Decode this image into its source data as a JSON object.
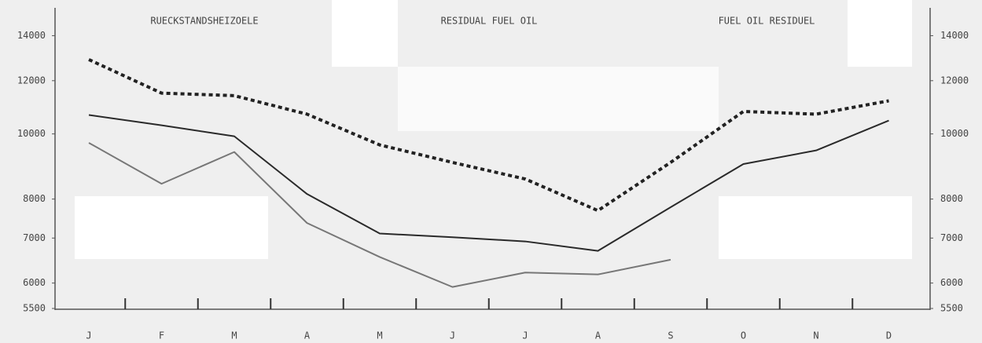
{
  "chart_data": {
    "type": "line",
    "titles": [
      "RUECKSTANDSHEIZOELE",
      "RESIDUAL FUEL OIL",
      "FUEL OIL RESIDUEL"
    ],
    "categories": [
      "J",
      "F",
      "M",
      "A",
      "M",
      "J",
      "J",
      "A",
      "S",
      "O",
      "N",
      "D"
    ],
    "series": [
      {
        "color": "#222222",
        "style": "dotted",
        "values": [
          12900,
          11500,
          11400,
          10700,
          9630,
          9070,
          8570,
          7690,
          9070,
          10800,
          10700,
          11200
        ]
      },
      {
        "color": "#2a2a2a",
        "style": "solid",
        "values": [
          10670,
          10300,
          9920,
          8140,
          7110,
          7020,
          6920,
          6700,
          7780,
          9020,
          9450,
          10470
        ]
      },
      {
        "color": "#777777",
        "style": "solid",
        "values": [
          9700,
          8430,
          9400,
          7370,
          6560,
          5920,
          6220,
          6180,
          6500,
          null,
          null,
          null
        ]
      }
    ],
    "ylim": [
      5500,
      15400
    ],
    "yticks": [
      5500,
      6000,
      7000,
      8000,
      10000,
      12000,
      14000
    ],
    "y2lim": [
      5500,
      15400
    ],
    "y2ticks": [
      5500,
      6000,
      7000,
      8000,
      10000,
      12000,
      14000
    ],
    "log_y": true
  }
}
